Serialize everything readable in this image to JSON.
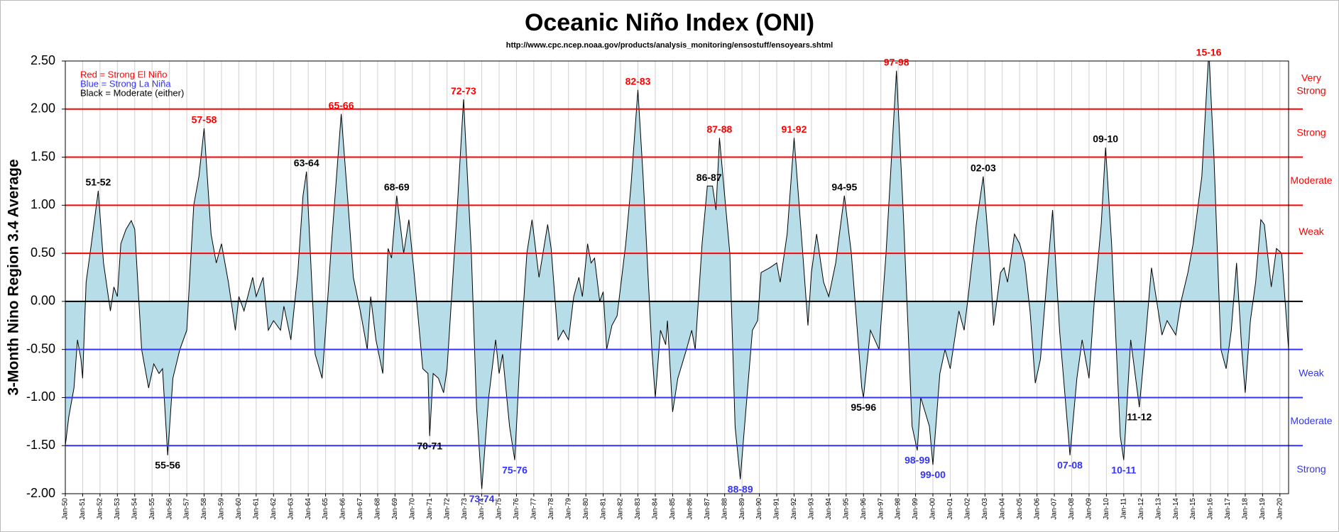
{
  "chart_data": {
    "type": "area",
    "title": "Oceanic Niño Index (ONI)",
    "subtitle": "http://www.cpc.ncep.noaa.gov/products/analysis_monitoring/ensostuff/ensoyears.shtml",
    "y_label": "3-Month Nino Region 3.4 Average",
    "legend_notes": [
      {
        "text": "Red = Strong  El Niño",
        "color": "#ff0000"
      },
      {
        "text": "Blue = Strong  La Niña",
        "color": "#3333ff"
      },
      {
        "text": "Black = Moderate  (either)",
        "color": "#000000"
      }
    ],
    "color": "#b7dde8",
    "line_color": "#000000",
    "xlim": [
      1950,
      2020.5
    ],
    "ylim": [
      -2,
      2.5
    ],
    "yticks": [
      {
        "value": 2.5,
        "label": "2.50"
      },
      {
        "value": 2,
        "label": "2.00"
      },
      {
        "value": 1.5,
        "label": "1.50"
      },
      {
        "value": 1,
        "label": "1.00"
      },
      {
        "value": 0.5,
        "label": "0.50"
      },
      {
        "value": 0,
        "label": "0.00"
      },
      {
        "value": -0.5,
        "label": "-0.50"
      },
      {
        "value": -1,
        "label": "-1.00"
      },
      {
        "value": -1.5,
        "label": "-1.50"
      },
      {
        "value": -2,
        "label": "-2.00"
      }
    ],
    "xticks": [
      {
        "value": 1950,
        "label": "Jan-50"
      },
      {
        "value": 1951,
        "label": "Jan-51"
      },
      {
        "value": 1952,
        "label": "Jan-52"
      },
      {
        "value": 1953,
        "label": "Jan-53"
      },
      {
        "value": 1954,
        "label": "Jan-54"
      },
      {
        "value": 1955,
        "label": "Jan-55"
      },
      {
        "value": 1956,
        "label": "Jan-56"
      },
      {
        "value": 1957,
        "label": "Jan-57"
      },
      {
        "value": 1958,
        "label": "Jan-58"
      },
      {
        "value": 1959,
        "label": "Jan-59"
      },
      {
        "value": 1960,
        "label": "Jan-60"
      },
      {
        "value": 1961,
        "label": "Jan-61"
      },
      {
        "value": 1962,
        "label": "Jan-62"
      },
      {
        "value": 1963,
        "label": "Jan-63"
      },
      {
        "value": 1964,
        "label": "Jan-64"
      },
      {
        "value": 1965,
        "label": "Jan-65"
      },
      {
        "value": 1966,
        "label": "Jan-66"
      },
      {
        "value": 1967,
        "label": "Jan-67"
      },
      {
        "value": 1968,
        "label": "Jan-68"
      },
      {
        "value": 1969,
        "label": "Jan-69"
      },
      {
        "value": 1970,
        "label": "Jan-70"
      },
      {
        "value": 1971,
        "label": "Jan-71"
      },
      {
        "value": 1972,
        "label": "Jan-72"
      },
      {
        "value": 1973,
        "label": "Jan-73"
      },
      {
        "value": 1974,
        "label": "Jan-74"
      },
      {
        "value": 1975,
        "label": "Jan-75"
      },
      {
        "value": 1976,
        "label": "Jan-76"
      },
      {
        "value": 1977,
        "label": "Jan-77"
      },
      {
        "value": 1978,
        "label": "Jan-78"
      },
      {
        "value": 1979,
        "label": "Jan-79"
      },
      {
        "value": 1980,
        "label": "Jan-80"
      },
      {
        "value": 1981,
        "label": "Jan-81"
      },
      {
        "value": 1982,
        "label": "Jan-82"
      },
      {
        "value": 1983,
        "label": "Jan-83"
      },
      {
        "value": 1984,
        "label": "Jan-84"
      },
      {
        "value": 1985,
        "label": "Jan-85"
      },
      {
        "value": 1986,
        "label": "Jan-86"
      },
      {
        "value": 1987,
        "label": "Jan-87"
      },
      {
        "value": 1988,
        "label": "Jan-88"
      },
      {
        "value": 1989,
        "label": "Jan-89"
      },
      {
        "value": 1990,
        "label": "Jan-90"
      },
      {
        "value": 1991,
        "label": "Jan-91"
      },
      {
        "value": 1992,
        "label": "Jan-92"
      },
      {
        "value": 1993,
        "label": "Jan-93"
      },
      {
        "value": 1994,
        "label": "Jan-94"
      },
      {
        "value": 1995,
        "label": "Jan-95"
      },
      {
        "value": 1996,
        "label": "Jan-96"
      },
      {
        "value": 1997,
        "label": "Jan-97"
      },
      {
        "value": 1998,
        "label": "Jan-98"
      },
      {
        "value": 1999,
        "label": "Jan-99"
      },
      {
        "value": 2000,
        "label": "Jan-00"
      },
      {
        "value": 2001,
        "label": "Jan-01"
      },
      {
        "value": 2002,
        "label": "Jan-02"
      },
      {
        "value": 2003,
        "label": "Jan-03"
      },
      {
        "value": 2004,
        "label": "Jan-04"
      },
      {
        "value": 2005,
        "label": "Jan-05"
      },
      {
        "value": 2006,
        "label": "Jan-06"
      },
      {
        "value": 2007,
        "label": "Jan-07"
      },
      {
        "value": 2008,
        "label": "Jan-08"
      },
      {
        "value": 2009,
        "label": "Jan-09"
      },
      {
        "value": 2010,
        "label": "Jan-10"
      },
      {
        "value": 2011,
        "label": "Jan-11"
      },
      {
        "value": 2012,
        "label": "Jan-12"
      },
      {
        "value": 2013,
        "label": "Jan-13"
      },
      {
        "value": 2014,
        "label": "Jan-14"
      },
      {
        "value": 2015,
        "label": "Jan-15"
      },
      {
        "value": 2016,
        "label": "Jan-16"
      },
      {
        "value": 2017,
        "label": "Jan-17"
      },
      {
        "value": 2018,
        "label": "Jan-18"
      },
      {
        "value": 2019,
        "label": "Jan-19"
      },
      {
        "value": 2020,
        "label": "Jan-20"
      }
    ],
    "grid": true,
    "thresholds": [
      {
        "value": 2,
        "color": "#ff0000"
      },
      {
        "value": 1.5,
        "color": "#ff0000"
      },
      {
        "value": 1,
        "color": "#ff0000"
      },
      {
        "value": 0.5,
        "color": "#ff0000"
      },
      {
        "value": 0,
        "color": "#000000"
      },
      {
        "value": -0.5,
        "color": "#3333ff"
      },
      {
        "value": -1,
        "color": "#3333ff"
      },
      {
        "value": -1.5,
        "color": "#3333ff"
      }
    ],
    "band_labels": [
      {
        "lines": [
          "Very",
          "Strong"
        ],
        "y": 2.25,
        "color": "#ff0000"
      },
      {
        "lines": [
          "Strong"
        ],
        "y": 1.75,
        "color": "#ff0000"
      },
      {
        "lines": [
          "Moderate"
        ],
        "y": 1.25,
        "color": "#ff0000"
      },
      {
        "lines": [
          "Weak"
        ],
        "y": 0.72,
        "color": "#ff0000"
      },
      {
        "lines": [
          "Weak"
        ],
        "y": -0.75,
        "color": "#3333ff"
      },
      {
        "lines": [
          "Moderate"
        ],
        "y": -1.25,
        "color": "#3333ff"
      },
      {
        "lines": [
          "Strong"
        ],
        "y": -1.75,
        "color": "#3333ff"
      }
    ],
    "annotations": [
      {
        "text": "51-52",
        "x": 1951.9,
        "y": 1.15,
        "color": "#000000"
      },
      {
        "text": "55-56",
        "x": 1955.9,
        "y": -1.6,
        "color": "#000000"
      },
      {
        "text": "57-58",
        "x": 1958.0,
        "y": 1.8,
        "color": "#ff0000"
      },
      {
        "text": "63-64",
        "x": 1963.9,
        "y": 1.35,
        "color": "#000000"
      },
      {
        "text": "65-66",
        "x": 1965.9,
        "y": 1.95,
        "color": "#ff0000"
      },
      {
        "text": "68-69",
        "x": 1969.1,
        "y": 1.1,
        "color": "#000000"
      },
      {
        "text": "70-71",
        "x": 1971.0,
        "y": -1.4,
        "color": "#000000"
      },
      {
        "text": "72-73",
        "x": 1972.95,
        "y": 2.1,
        "color": "#ff0000"
      },
      {
        "text": "73-74",
        "x": 1974.0,
        "y": -1.95,
        "color": "#3333ff"
      },
      {
        "text": "75-76",
        "x": 1975.9,
        "y": -1.65,
        "color": "#3333ff"
      },
      {
        "text": "82-83",
        "x": 1983.0,
        "y": 2.2,
        "color": "#ff0000"
      },
      {
        "text": "86-87",
        "x": 1987.1,
        "y": 1.2,
        "color": "#000000"
      },
      {
        "text": "87-88",
        "x": 1987.7,
        "y": 1.7,
        "color": "#ff0000"
      },
      {
        "text": "88-89",
        "x": 1988.9,
        "y": -1.85,
        "color": "#3333ff"
      },
      {
        "text": "91-92",
        "x": 1992.0,
        "y": 1.7,
        "color": "#ff0000"
      },
      {
        "text": "94-95",
        "x": 1994.9,
        "y": 1.1,
        "color": "#000000"
      },
      {
        "text": "95-96",
        "x": 1996.0,
        "y": -1.0,
        "color": "#000000"
      },
      {
        "text": "97-98",
        "x": 1997.9,
        "y": 2.4,
        "color": "#ff0000"
      },
      {
        "text": "98-99",
        "x": 1999.1,
        "y": -1.55,
        "color": "#3333ff"
      },
      {
        "text": "99-00",
        "x": 2000.0,
        "y": -1.7,
        "color": "#3333ff"
      },
      {
        "text": "02-03",
        "x": 2002.9,
        "y": 1.3,
        "color": "#000000"
      },
      {
        "text": "07-08",
        "x": 2007.9,
        "y": -1.6,
        "color": "#3333ff"
      },
      {
        "text": "09-10",
        "x": 2009.95,
        "y": 1.6,
        "color": "#000000"
      },
      {
        "text": "10-11",
        "x": 2011.0,
        "y": -1.65,
        "color": "#3333ff"
      },
      {
        "text": "11-12",
        "x": 2011.9,
        "y": -1.1,
        "color": "#000000"
      },
      {
        "text": "15-16",
        "x": 2015.9,
        "y": 2.5,
        "color": "#ff0000"
      }
    ],
    "x": [
      1950.0,
      1950.2,
      1950.5,
      1950.7,
      1950.9,
      1951.0,
      1951.2,
      1951.5,
      1951.9,
      1952.2,
      1952.6,
      1952.8,
      1953.0,
      1953.2,
      1953.5,
      1953.8,
      1954.0,
      1954.4,
      1954.8,
      1955.1,
      1955.4,
      1955.6,
      1955.9,
      1956.2,
      1956.6,
      1957.0,
      1957.4,
      1957.7,
      1958.0,
      1958.4,
      1958.7,
      1959.0,
      1959.4,
      1959.8,
      1960.0,
      1960.3,
      1960.8,
      1961.0,
      1961.4,
      1961.7,
      1962.0,
      1962.4,
      1962.6,
      1963.0,
      1963.4,
      1963.7,
      1963.9,
      1964.4,
      1964.8,
      1965.0,
      1965.3,
      1965.9,
      1966.3,
      1966.6,
      1967.0,
      1967.4,
      1967.6,
      1967.9,
      1968.3,
      1968.6,
      1968.8,
      1969.1,
      1969.5,
      1969.8,
      1970.1,
      1970.6,
      1970.9,
      1971.0,
      1971.2,
      1971.5,
      1971.8,
      1972.0,
      1972.6,
      1972.95,
      1973.4,
      1973.7,
      1974.0,
      1974.4,
      1974.8,
      1975.0,
      1975.2,
      1975.6,
      1975.9,
      1976.2,
      1976.6,
      1976.9,
      1977.3,
      1977.8,
      1978.0,
      1978.4,
      1978.7,
      1979.0,
      1979.3,
      1979.6,
      1979.8,
      1980.1,
      1980.3,
      1980.5,
      1980.8,
      1981.0,
      1981.2,
      1981.5,
      1981.8,
      1982.3,
      1982.6,
      1983.0,
      1983.3,
      1983.8,
      1984.0,
      1984.3,
      1984.6,
      1984.7,
      1985.0,
      1985.3,
      1985.8,
      1986.1,
      1986.3,
      1986.7,
      1987.0,
      1987.3,
      1987.5,
      1987.7,
      1988.0,
      1988.3,
      1988.6,
      1988.9,
      1989.1,
      1989.6,
      1989.9,
      1990.1,
      1990.6,
      1991.0,
      1991.2,
      1991.6,
      1992.0,
      1992.5,
      1992.8,
      1993.0,
      1993.3,
      1993.7,
      1994.0,
      1994.4,
      1994.9,
      1995.3,
      1995.9,
      1996.0,
      1996.4,
      1996.9,
      1997.3,
      1997.9,
      1998.3,
      1998.8,
      1999.1,
      1999.3,
      1999.8,
      2000.0,
      2000.4,
      2000.7,
      2001.0,
      2001.5,
      2001.8,
      2002.0,
      2002.5,
      2002.9,
      2003.3,
      2003.5,
      2003.9,
      2004.1,
      2004.3,
      2004.7,
      2005.0,
      2005.3,
      2005.6,
      2005.9,
      2006.2,
      2006.6,
      2006.9,
      2007.3,
      2007.9,
      2008.3,
      2008.6,
      2009.0,
      2009.3,
      2009.7,
      2009.95,
      2010.3,
      2010.8,
      2011.0,
      2011.4,
      2011.9,
      2012.2,
      2012.6,
      2012.9,
      2013.2,
      2013.5,
      2014.0,
      2014.3,
      2014.7,
      2015.0,
      2015.5,
      2015.9,
      2016.2,
      2016.6,
      2016.9,
      2017.2,
      2017.5,
      2017.8,
      2018.0,
      2018.3,
      2018.6,
      2018.9,
      2019.1,
      2019.5,
      2019.8,
      2020.1,
      2020.5
    ],
    "values": [
      -1.5,
      -1.2,
      -0.9,
      -0.4,
      -0.6,
      -0.8,
      0.2,
      0.6,
      1.15,
      0.4,
      -0.1,
      0.15,
      0.05,
      0.6,
      0.75,
      0.84,
      0.75,
      -0.5,
      -0.9,
      -0.65,
      -0.75,
      -0.7,
      -1.6,
      -0.8,
      -0.5,
      -0.3,
      1.0,
      1.3,
      1.8,
      0.7,
      0.4,
      0.6,
      0.2,
      -0.3,
      0.05,
      -0.1,
      0.25,
      0.05,
      0.25,
      -0.3,
      -0.2,
      -0.3,
      -0.05,
      -0.4,
      0.3,
      1.1,
      1.35,
      -0.55,
      -0.8,
      -0.3,
      0.5,
      1.95,
      1.0,
      0.25,
      -0.1,
      -0.5,
      0.05,
      -0.4,
      -0.75,
      0.55,
      0.45,
      1.1,
      0.5,
      0.85,
      0.3,
      -0.7,
      -0.75,
      -1.4,
      -0.75,
      -0.8,
      -0.95,
      -0.7,
      1.0,
      2.1,
      0.5,
      -1.1,
      -1.95,
      -1.0,
      -0.4,
      -0.75,
      -0.55,
      -1.3,
      -1.65,
      -0.6,
      0.5,
      0.85,
      0.25,
      0.8,
      0.55,
      -0.4,
      -0.3,
      -0.4,
      0.05,
      0.25,
      0.05,
      0.6,
      0.4,
      0.45,
      0.0,
      0.1,
      -0.5,
      -0.25,
      -0.15,
      0.6,
      1.2,
      2.2,
      1.3,
      -0.5,
      -1.0,
      -0.3,
      -0.45,
      -0.2,
      -1.15,
      -0.8,
      -0.5,
      -0.3,
      -0.5,
      0.6,
      1.2,
      1.2,
      0.95,
      1.7,
      1.1,
      0.5,
      -1.3,
      -1.85,
      -1.4,
      -0.3,
      -0.2,
      0.3,
      0.35,
      0.4,
      0.2,
      0.7,
      1.7,
      0.5,
      -0.25,
      0.3,
      0.7,
      0.2,
      0.05,
      0.4,
      1.1,
      0.5,
      -0.9,
      -1.0,
      -0.3,
      -0.5,
      0.5,
      2.4,
      0.9,
      -1.3,
      -1.55,
      -1.0,
      -1.3,
      -1.7,
      -0.75,
      -0.5,
      -0.7,
      -0.1,
      -0.3,
      0.0,
      0.8,
      1.3,
      0.4,
      -0.25,
      0.3,
      0.35,
      0.2,
      0.7,
      0.6,
      0.4,
      -0.1,
      -0.85,
      -0.6,
      0.3,
      0.95,
      -0.3,
      -1.6,
      -0.8,
      -0.4,
      -0.8,
      0.0,
      0.8,
      1.6,
      0.6,
      -1.4,
      -1.65,
      -0.4,
      -1.1,
      -0.5,
      0.35,
      0.0,
      -0.35,
      -0.2,
      -0.35,
      0.0,
      0.3,
      0.6,
      1.3,
      2.6,
      1.5,
      -0.5,
      -0.7,
      -0.3,
      0.4,
      -0.5,
      -0.95,
      -0.2,
      0.2,
      0.85,
      0.8,
      0.15,
      0.55,
      0.5,
      -0.5
    ]
  }
}
